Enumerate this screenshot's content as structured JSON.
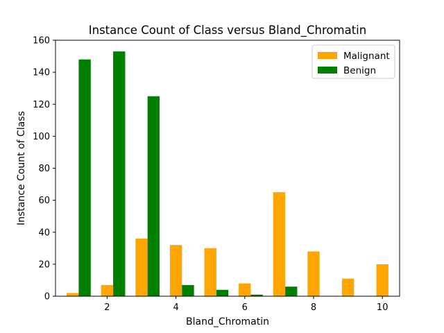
{
  "chart_data": {
    "type": "bar",
    "title": "Instance Count of Class versus Bland_Chromatin",
    "xlabel": "Bland_Chromatin",
    "ylabel": "Instance Count of Class",
    "x": [
      1,
      2,
      3,
      4,
      5,
      6,
      7,
      8,
      9,
      10
    ],
    "xlim": [
      0.5,
      10.5
    ],
    "ylim": [
      0,
      160
    ],
    "xticks": [
      2,
      4,
      6,
      8,
      10
    ],
    "yticks": [
      0,
      20,
      40,
      60,
      80,
      100,
      120,
      140,
      160
    ],
    "bar_width": 0.35,
    "grid": false,
    "legend_position": "top-right",
    "series": [
      {
        "name": "Malignant",
        "color": "#FFA500",
        "values": [
          2,
          7,
          36,
          32,
          30,
          8,
          65,
          28,
          11,
          20
        ]
      },
      {
        "name": "Benign",
        "color": "#008000",
        "values": [
          148,
          153,
          125,
          7,
          4,
          1,
          6,
          0,
          0,
          0
        ]
      }
    ]
  }
}
